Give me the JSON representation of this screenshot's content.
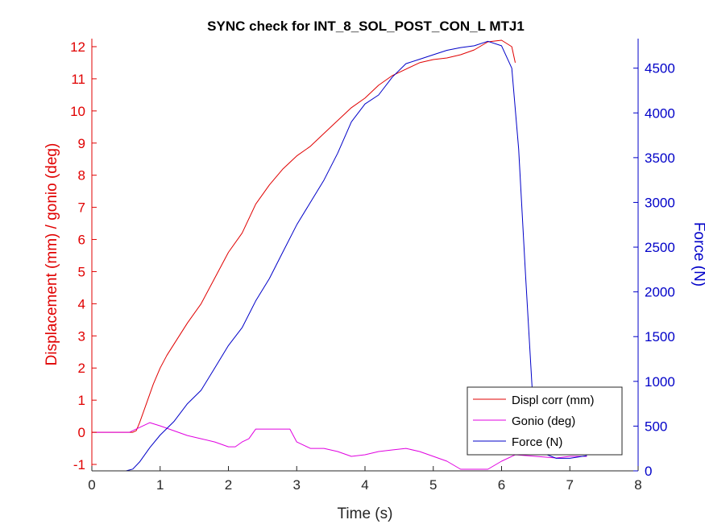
{
  "chart_data": {
    "type": "line",
    "title": "SYNC check for INT_8_SOL_POST_CON_L MTJ1",
    "xlabel": "Time (s)",
    "ylabel_left": "Displacement (mm) / gonio (deg)",
    "ylabel_right": "Force (N)",
    "xlim": [
      0,
      8
    ],
    "ylim_left": [
      -1.2,
      12.25
    ],
    "ylim_right": [
      0,
      4830
    ],
    "x_ticks": [
      "0",
      "1",
      "2",
      "3",
      "4",
      "5",
      "6",
      "7",
      "8"
    ],
    "y_left_ticks": [
      "-1",
      "0",
      "1",
      "2",
      "3",
      "4",
      "5",
      "6",
      "7",
      "8",
      "9",
      "10",
      "11",
      "12"
    ],
    "y_right_ticks": [
      "0",
      "500",
      "1000",
      "1500",
      "2000",
      "2500",
      "3000",
      "3500",
      "4000",
      "4500"
    ],
    "grid": false,
    "legend_position": "bottom-right",
    "series": [
      {
        "name": "Displ corr (mm)",
        "axis": "left",
        "color": "#e00000",
        "points": [
          [
            0,
            0
          ],
          [
            0.6,
            0
          ],
          [
            0.65,
            0.05
          ],
          [
            0.7,
            0.3
          ],
          [
            0.8,
            0.9
          ],
          [
            0.9,
            1.5
          ],
          [
            1.0,
            2.0
          ],
          [
            1.1,
            2.4
          ],
          [
            1.25,
            2.9
          ],
          [
            1.4,
            3.4
          ],
          [
            1.6,
            4.0
          ],
          [
            1.8,
            4.8
          ],
          [
            2.0,
            5.6
          ],
          [
            2.2,
            6.2
          ],
          [
            2.4,
            7.1
          ],
          [
            2.6,
            7.7
          ],
          [
            2.8,
            8.2
          ],
          [
            3.0,
            8.6
          ],
          [
            3.2,
            8.9
          ],
          [
            3.4,
            9.3
          ],
          [
            3.6,
            9.7
          ],
          [
            3.8,
            10.1
          ],
          [
            4.0,
            10.4
          ],
          [
            4.2,
            10.8
          ],
          [
            4.4,
            11.1
          ],
          [
            4.6,
            11.3
          ],
          [
            4.8,
            11.5
          ],
          [
            5.0,
            11.6
          ],
          [
            5.2,
            11.65
          ],
          [
            5.4,
            11.75
          ],
          [
            5.6,
            11.9
          ],
          [
            5.8,
            12.15
          ],
          [
            6.0,
            12.2
          ],
          [
            6.15,
            12.0
          ],
          [
            6.2,
            11.5
          ]
        ]
      },
      {
        "name": "Gonio (deg)",
        "axis": "left",
        "color": "#e000e0",
        "points": [
          [
            0,
            0
          ],
          [
            0.55,
            0
          ],
          [
            0.7,
            0.15
          ],
          [
            0.85,
            0.3
          ],
          [
            1.0,
            0.2
          ],
          [
            1.2,
            0.05
          ],
          [
            1.4,
            -0.1
          ],
          [
            1.6,
            -0.2
          ],
          [
            1.8,
            -0.3
          ],
          [
            2.0,
            -0.45
          ],
          [
            2.1,
            -0.45
          ],
          [
            2.2,
            -0.3
          ],
          [
            2.3,
            -0.2
          ],
          [
            2.4,
            0.1
          ],
          [
            2.6,
            0.1
          ],
          [
            2.8,
            0.1
          ],
          [
            2.9,
            0.1
          ],
          [
            3.0,
            -0.3
          ],
          [
            3.2,
            -0.5
          ],
          [
            3.4,
            -0.5
          ],
          [
            3.6,
            -0.6
          ],
          [
            3.8,
            -0.75
          ],
          [
            4.0,
            -0.7
          ],
          [
            4.2,
            -0.6
          ],
          [
            4.4,
            -0.55
          ],
          [
            4.6,
            -0.5
          ],
          [
            4.8,
            -0.6
          ],
          [
            5.0,
            -0.75
          ],
          [
            5.2,
            -0.9
          ],
          [
            5.4,
            -1.15
          ],
          [
            5.6,
            -1.15
          ],
          [
            5.8,
            -1.15
          ],
          [
            6.0,
            -0.9
          ],
          [
            6.2,
            -0.7
          ],
          [
            6.5,
            -0.75
          ],
          [
            6.8,
            -0.8
          ],
          [
            7.0,
            -0.75
          ],
          [
            7.25,
            -0.75
          ]
        ]
      },
      {
        "name": "Force (N)",
        "axis": "right",
        "color": "#0000c8",
        "points": [
          [
            0,
            0
          ],
          [
            0.5,
            0
          ],
          [
            0.6,
            20
          ],
          [
            0.7,
            100
          ],
          [
            0.85,
            260
          ],
          [
            1.0,
            400
          ],
          [
            1.2,
            550
          ],
          [
            1.4,
            750
          ],
          [
            1.6,
            900
          ],
          [
            1.8,
            1150
          ],
          [
            2.0,
            1400
          ],
          [
            2.2,
            1600
          ],
          [
            2.4,
            1900
          ],
          [
            2.6,
            2150
          ],
          [
            2.8,
            2450
          ],
          [
            3.0,
            2750
          ],
          [
            3.2,
            3000
          ],
          [
            3.4,
            3250
          ],
          [
            3.6,
            3550
          ],
          [
            3.8,
            3900
          ],
          [
            4.0,
            4100
          ],
          [
            4.2,
            4200
          ],
          [
            4.4,
            4400
          ],
          [
            4.6,
            4550
          ],
          [
            4.8,
            4600
          ],
          [
            5.0,
            4650
          ],
          [
            5.2,
            4700
          ],
          [
            5.4,
            4730
          ],
          [
            5.6,
            4750
          ],
          [
            5.8,
            4800
          ],
          [
            6.0,
            4750
          ],
          [
            6.15,
            4500
          ],
          [
            6.25,
            3600
          ],
          [
            6.35,
            2200
          ],
          [
            6.45,
            900
          ],
          [
            6.6,
            200
          ],
          [
            6.8,
            140
          ],
          [
            7.0,
            140
          ],
          [
            7.25,
            170
          ]
        ]
      }
    ]
  }
}
